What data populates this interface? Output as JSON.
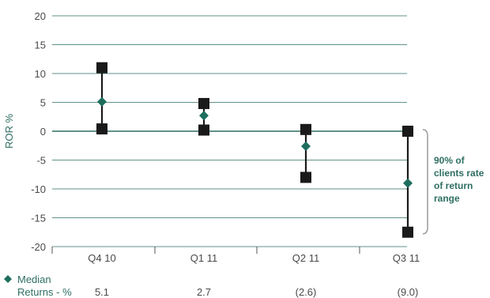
{
  "chart_data": {
    "type": "range",
    "ylabel": "ROR %",
    "ylim": [
      -20,
      20
    ],
    "yticks": [
      20,
      15,
      10,
      5,
      0,
      -5,
      -10,
      -15,
      -20
    ],
    "yticks_labels": [
      "20",
      "15",
      "10",
      "5",
      "0",
      "-5",
      "-10",
      "-15",
      "-20"
    ],
    "categories": [
      "Q4 10",
      "Q1 11",
      "Q2 11",
      "Q3 11"
    ],
    "high": [
      11.0,
      4.8,
      0.3,
      0.0
    ],
    "low": [
      0.4,
      0.2,
      -8.0,
      -17.5
    ],
    "median": [
      5.1,
      2.7,
      -2.6,
      -9.0
    ],
    "median_labels": [
      "5.1",
      "2.7",
      "(2.6)",
      "(9.0)"
    ],
    "annotation": [
      "90% of",
      "clients rate",
      "of return",
      "range"
    ],
    "legend": {
      "line1": "Median",
      "line2": "Returns - %"
    },
    "grid": true,
    "colors": {
      "grid": "#2e6e62",
      "marker_square": "#1a1a1a",
      "marker_diamond": "#1e6e5e",
      "text_accent": "#2e6e62",
      "bracket": "#9a9a9a"
    }
  }
}
